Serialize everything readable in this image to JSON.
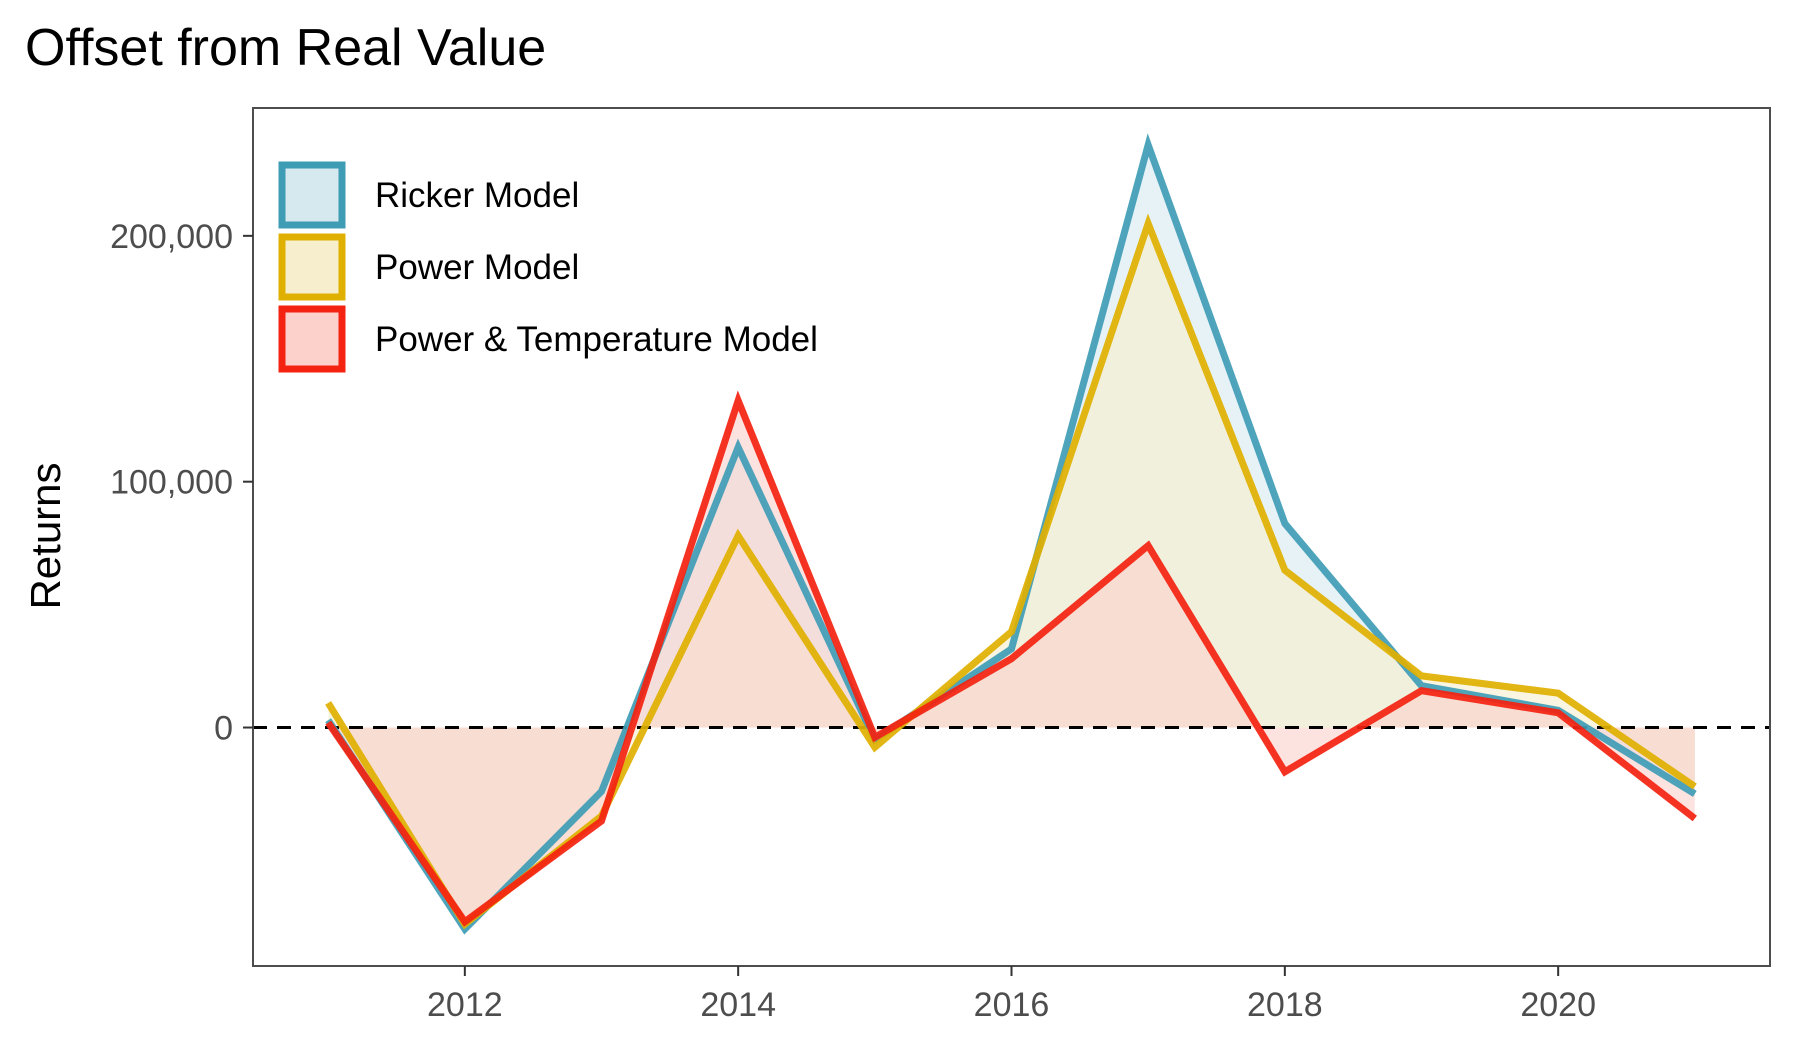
{
  "chart_data": {
    "type": "area",
    "title": "Offset from Real Value",
    "xlabel": "",
    "ylabel": "Returns",
    "x": [
      2011,
      2012,
      2013,
      2014,
      2015,
      2016,
      2017,
      2018,
      2019,
      2020,
      2021
    ],
    "xlim": [
      2010.45,
      2021.55
    ],
    "ylim": [
      -97000,
      252000
    ],
    "x_ticks": [
      2012,
      2014,
      2016,
      2018,
      2020
    ],
    "x_tick_labels": [
      "2012",
      "2014",
      "2016",
      "2018",
      "2020"
    ],
    "y_ticks": [
      0,
      100000,
      200000
    ],
    "y_tick_labels": [
      "0",
      "100,000",
      "200,000"
    ],
    "reference_line": {
      "y": 0,
      "style": "dashed"
    },
    "grid": false,
    "legend_position": "top-left",
    "series": [
      {
        "name": "Ricker Model",
        "color": "#3f9cb5",
        "fill": "#d6e9ef",
        "values": [
          3000,
          -82000,
          -26000,
          114000,
          -5000,
          32000,
          237000,
          83000,
          17000,
          7000,
          -27000
        ]
      },
      {
        "name": "Power Model",
        "color": "#e0b000",
        "fill": "#f7eecd",
        "values": [
          10000,
          -80000,
          -36000,
          78000,
          -8000,
          39000,
          205000,
          64000,
          21000,
          14000,
          -24000
        ]
      },
      {
        "name": "Power & Temperature Model",
        "color": "#f42210",
        "fill": "#fcd1cb",
        "values": [
          2000,
          -79000,
          -38000,
          133000,
          -4000,
          28000,
          74000,
          -18000,
          15000,
          6000,
          -37000
        ]
      }
    ]
  }
}
